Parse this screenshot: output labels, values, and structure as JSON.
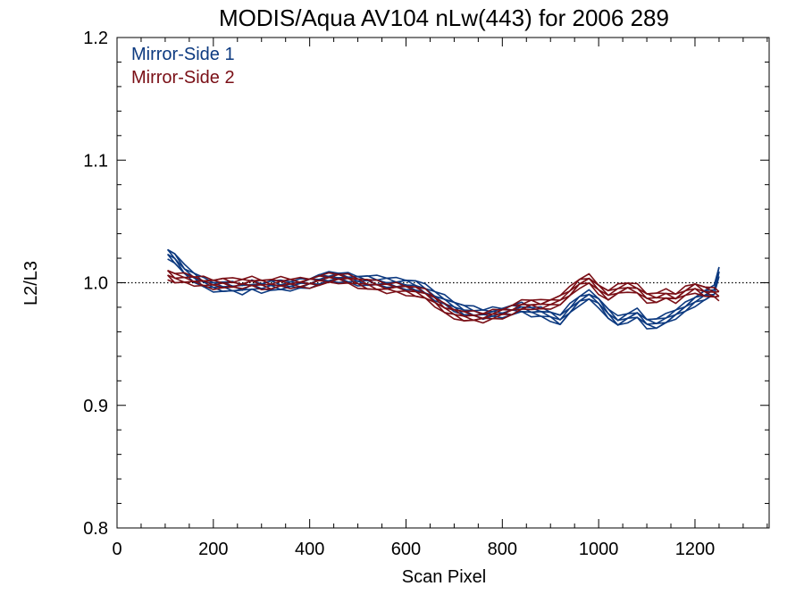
{
  "chart_data": {
    "type": "line",
    "title": "MODIS/Aqua AV104 nLw(443) for 2006 289",
    "xlabel": "Scan Pixel",
    "ylabel": "L2/L3",
    "xlim": [
      0,
      1354
    ],
    "ylim": [
      0.8,
      1.2
    ],
    "xticks": [
      "0",
      "200",
      "400",
      "600",
      "800",
      "1000",
      "1200"
    ],
    "yticks": [
      "0.8",
      "0.9",
      "1.0",
      "1.1",
      "1.2"
    ],
    "reference_line": 1.0,
    "grid": false,
    "legend_position": "top-left",
    "series": [
      {
        "name": "Mirror-Side 1",
        "color": "#0d3a80",
        "x": [
          105,
          120,
          140,
          160,
          180,
          200,
          220,
          240,
          260,
          280,
          300,
          320,
          340,
          360,
          380,
          400,
          420,
          440,
          460,
          480,
          500,
          520,
          540,
          560,
          580,
          600,
          620,
          640,
          660,
          680,
          700,
          720,
          740,
          760,
          780,
          800,
          820,
          840,
          860,
          880,
          900,
          920,
          940,
          960,
          980,
          1000,
          1020,
          1040,
          1060,
          1080,
          1100,
          1120,
          1140,
          1160,
          1180,
          1200,
          1220,
          1240,
          1250
        ],
        "y": [
          1.025,
          1.02,
          1.01,
          1.005,
          1.0,
          0.998,
          0.997,
          0.996,
          0.995,
          0.998,
          0.997,
          0.998,
          0.997,
          0.998,
          0.999,
          1.001,
          1.003,
          1.004,
          1.005,
          1.004,
          1.003,
          1.002,
          1.001,
          1.001,
          1.0,
          1.0,
          0.998,
          0.994,
          0.99,
          0.986,
          0.982,
          0.978,
          0.976,
          0.975,
          0.976,
          0.977,
          0.978,
          0.979,
          0.977,
          0.976,
          0.974,
          0.97,
          0.978,
          0.986,
          0.99,
          0.985,
          0.975,
          0.968,
          0.972,
          0.975,
          0.968,
          0.967,
          0.97,
          0.975,
          0.98,
          0.986,
          0.99,
          0.993,
          1.01
        ]
      },
      {
        "name": "Mirror-Side 2",
        "color": "#7a0f16",
        "x": [
          105,
          120,
          140,
          160,
          180,
          200,
          220,
          240,
          260,
          280,
          300,
          320,
          340,
          360,
          380,
          400,
          420,
          440,
          460,
          480,
          500,
          520,
          540,
          560,
          580,
          600,
          620,
          640,
          660,
          680,
          700,
          720,
          740,
          760,
          780,
          800,
          820,
          840,
          860,
          880,
          900,
          920,
          940,
          960,
          980,
          1000,
          1020,
          1040,
          1060,
          1080,
          1100,
          1120,
          1140,
          1160,
          1180,
          1200,
          1220,
          1240,
          1250
        ],
        "y": [
          1.008,
          1.004,
          1.003,
          1.002,
          1.001,
          1.0,
          1.0,
          0.999,
          1.0,
          1.001,
          1.0,
          0.999,
          1.0,
          1.0,
          1.0,
          1.001,
          1.002,
          1.003,
          1.004,
          1.003,
          1.001,
          0.999,
          0.997,
          0.996,
          0.996,
          0.995,
          0.993,
          0.99,
          0.985,
          0.979,
          0.976,
          0.973,
          0.972,
          0.972,
          0.974,
          0.976,
          0.978,
          0.981,
          0.983,
          0.982,
          0.984,
          0.986,
          0.992,
          1.0,
          1.003,
          0.996,
          0.99,
          0.994,
          0.997,
          0.995,
          0.989,
          0.988,
          0.99,
          0.988,
          0.993,
          0.997,
          0.993,
          0.991,
          0.99
        ]
      }
    ]
  }
}
